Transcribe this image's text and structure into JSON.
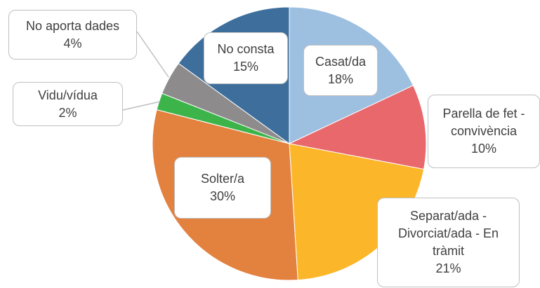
{
  "chart_data": {
    "type": "pie",
    "categories": [
      "Casat/da",
      "Parella de fet - convivència",
      "Separat/ada - Divorciat/ada - En tràmit",
      "Solter/a",
      "Vidu/vídua",
      "No aporta dades",
      "No consta"
    ],
    "values": [
      18,
      10,
      21,
      30,
      2,
      4,
      15
    ],
    "value_labels": [
      "18%",
      "10%",
      "21%",
      "30%",
      "2%",
      "4%",
      "15%"
    ],
    "colors": [
      "#9dbfe0",
      "#e9686c",
      "#fcb62a",
      "#e3813f",
      "#3cb44a",
      "#8d8b8b",
      "#3d6e9c"
    ]
  }
}
